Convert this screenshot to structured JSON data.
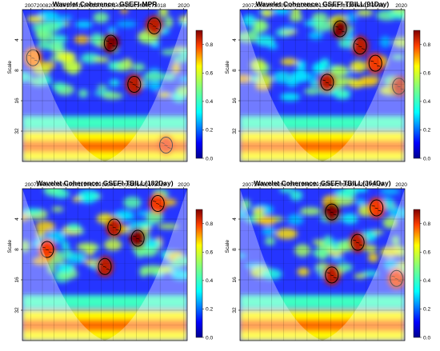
{
  "chart_data": [
    {
      "type": "heatmap",
      "title": "Wavelet Coherence: GSEFI-MPR",
      "ylabel": "Scale",
      "x_ticks": [
        "2007",
        "2008",
        "2009",
        "2010",
        "2011",
        "2012",
        "2013",
        "2014",
        "2015",
        "2016",
        "2017",
        "2018",
        "2020"
      ],
      "y_ticks": [
        "4",
        "8",
        "16",
        "32"
      ],
      "colorbar_ticks": [
        "0.0",
        "0.2",
        "0.4",
        "0.6",
        "0.8"
      ],
      "zlim": [
        0,
        0.9
      ],
      "high_coherence_regions": [
        {
          "year": 2013.8,
          "scale": 4.3,
          "level": 0.9
        },
        {
          "year": 2015.8,
          "scale": 11.0,
          "level": 0.85
        },
        {
          "year": 2017.5,
          "scale": 2.9,
          "level": 0.85
        },
        {
          "year": 2018.5,
          "scale": 44.0,
          "level": 0.8
        },
        {
          "year": 2007.2,
          "scale": 6.0,
          "level": 0.75
        }
      ]
    },
    {
      "type": "heatmap",
      "title": "Wavelet Coherence: GSEFI-TBILL(91Day)",
      "ylabel": "Scale",
      "x_ticks": [
        "2007",
        "2008",
        "2009",
        "2010",
        "2011",
        "2012",
        "2013",
        "2014",
        "2015",
        "2016",
        "2017",
        "2018",
        "2020"
      ],
      "y_ticks": [
        "4",
        "8",
        "16",
        "32"
      ],
      "colorbar_ticks": [
        "0.0",
        "0.2",
        "0.4",
        "0.6",
        "0.8"
      ],
      "zlim": [
        0,
        0.9
      ],
      "high_coherence_regions": [
        {
          "year": 2014.8,
          "scale": 3.1,
          "level": 0.9
        },
        {
          "year": 2016.5,
          "scale": 4.6,
          "level": 0.85
        },
        {
          "year": 2013.7,
          "scale": 10.5,
          "level": 0.85
        },
        {
          "year": 2017.8,
          "scale": 6.8,
          "level": 0.8
        },
        {
          "year": 2019.8,
          "scale": 11.5,
          "level": 0.85
        }
      ]
    },
    {
      "type": "heatmap",
      "title": "Wavelet Coherence: GSEFI-TBILL(182Day)",
      "ylabel": "Scale",
      "x_ticks": [
        "2007",
        "2008",
        "2009",
        "2010",
        "2011",
        "2012",
        "2013",
        "2014",
        "2015",
        "2016",
        "2017",
        "2018",
        "2020"
      ],
      "y_ticks": [
        "4",
        "8",
        "16",
        "32"
      ],
      "colorbar_ticks": [
        "0.0",
        "0.2",
        "0.4",
        "0.6",
        "0.8"
      ],
      "zlim": [
        0,
        0.9
      ],
      "high_coherence_regions": [
        {
          "year": 2016.1,
          "scale": 6.2,
          "level": 0.9
        },
        {
          "year": 2013.3,
          "scale": 11.8,
          "level": 0.85
        },
        {
          "year": 2008.4,
          "scale": 8.0,
          "level": 0.8
        },
        {
          "year": 2014.1,
          "scale": 4.8,
          "level": 0.85
        },
        {
          "year": 2017.8,
          "scale": 2.8,
          "level": 0.8
        }
      ]
    },
    {
      "type": "heatmap",
      "title": "Wavelet Coherence: GSEFI-TBILL(364Day)",
      "ylabel": "Scale",
      "x_ticks": [
        "2007",
        "2008",
        "2009",
        "2010",
        "2011",
        "2012",
        "2013",
        "2014",
        "2015",
        "2016",
        "2017",
        "2018",
        "2020"
      ],
      "y_ticks": [
        "4",
        "8",
        "16",
        "32"
      ],
      "colorbar_ticks": [
        "0.0",
        "0.2",
        "0.4",
        "0.6",
        "0.8"
      ],
      "zlim": [
        0,
        0.9
      ],
      "high_coherence_regions": [
        {
          "year": 2014.1,
          "scale": 3.4,
          "level": 0.9
        },
        {
          "year": 2016.3,
          "scale": 6.8,
          "level": 0.85
        },
        {
          "year": 2014.1,
          "scale": 14.3,
          "level": 0.85
        },
        {
          "year": 2019.6,
          "scale": 15.5,
          "level": 0.8
        },
        {
          "year": 2017.9,
          "scale": 3.1,
          "level": 0.8
        }
      ]
    }
  ]
}
